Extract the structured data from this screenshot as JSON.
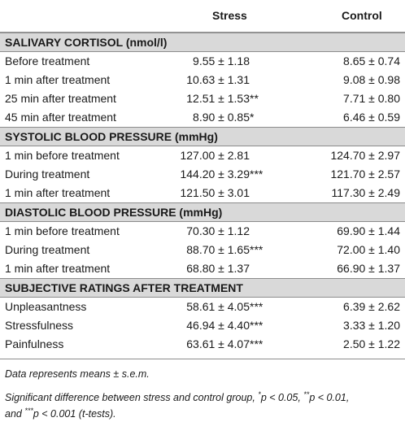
{
  "header": {
    "col_stress": "Stress",
    "col_control": "Control"
  },
  "sections": [
    {
      "title": "SALIVARY CORTISOL (nmol/l)",
      "rows": [
        {
          "label": "Before treatment",
          "stress": "9.55 ± 1.18",
          "stress_sig": "",
          "control": "8.65 ± 0.74"
        },
        {
          "label": "1 min after treatment",
          "stress": "10.63 ± 1.31",
          "stress_sig": "",
          "control": "9.08 ± 0.98"
        },
        {
          "label": "25 min after treatment",
          "stress": "12.51 ± 1.53",
          "stress_sig": "**",
          "control": "7.71 ± 0.80"
        },
        {
          "label": "45 min after treatment",
          "stress": "8.90 ± 0.85",
          "stress_sig": "*",
          "control": "6.46 ± 0.59"
        }
      ]
    },
    {
      "title": "SYSTOLIC BLOOD PRESSURE (mmHg)",
      "rows": [
        {
          "label": "1 min before treatment",
          "stress": "127.00 ± 2.81",
          "stress_sig": "",
          "control": "124.70 ± 2.97"
        },
        {
          "label": "During treatment",
          "stress": "144.20 ± 3.29",
          "stress_sig": "***",
          "control": "121.70 ± 2.57"
        },
        {
          "label": "1 min after treatment",
          "stress": "121.50 ± 3.01",
          "stress_sig": "",
          "control": "117.30 ± 2.49"
        }
      ]
    },
    {
      "title": "DIASTOLIC BLOOD PRESSURE (mmHg)",
      "rows": [
        {
          "label": "1 min before treatment",
          "stress": "70.30 ± 1.12",
          "stress_sig": "",
          "control": "69.90 ± 1.44"
        },
        {
          "label": "During treatment",
          "stress": "88.70 ± 1.65",
          "stress_sig": "***",
          "control": "72.00 ± 1.40"
        },
        {
          "label": "1 min after treatment",
          "stress": "68.80 ± 1.37",
          "stress_sig": "",
          "control": "66.90 ± 1.37"
        }
      ]
    },
    {
      "title": "SUBJECTIVE RATINGS AFTER TREATMENT",
      "rows": [
        {
          "label": "Unpleasantness",
          "stress": "58.61 ± 4.05",
          "stress_sig": "***",
          "control": "6.39 ± 2.62"
        },
        {
          "label": "Stressfulness",
          "stress": "46.94 ± 4.40",
          "stress_sig": "***",
          "control": "3.33 ± 1.20"
        },
        {
          "label": "Painfulness",
          "stress": "63.61 ± 4.07",
          "stress_sig": "***",
          "control": "2.50 ± 1.22"
        }
      ]
    }
  ],
  "notes": {
    "note1": "Data represents means ± s.e.m.",
    "note2_prefix": "Significant difference between stress and control group, ",
    "note2_s1": "*",
    "note2_p1": "p < 0.05, ",
    "note2_s2": "**",
    "note2_p2": "p < 0.01,",
    "note2_line2_prefix": "and ",
    "note2_s3": "***",
    "note2_p3": "p < 0.001 (t-tests)."
  }
}
